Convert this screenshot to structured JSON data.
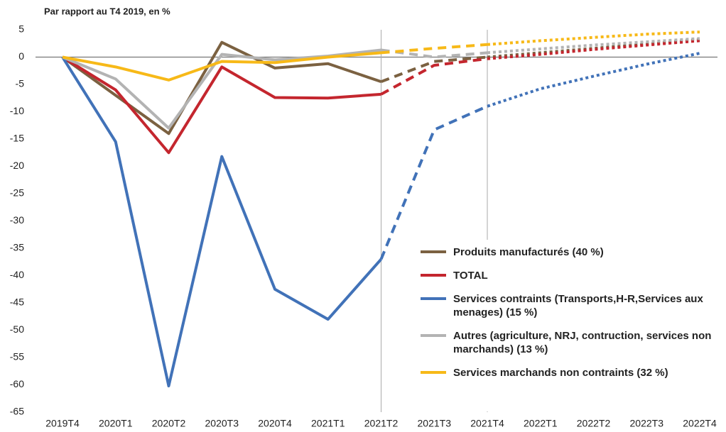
{
  "chart_data": {
    "type": "line",
    "title": "Par rapport au T4 2019, en %",
    "categories": [
      "2019T4",
      "2020T1",
      "2020T2",
      "2020T3",
      "2020T4",
      "2021T1",
      "2021T2",
      "2021T3",
      "2021T4",
      "2022T1",
      "2022T2",
      "2022T3",
      "2022T4"
    ],
    "segment_styles": [
      "solid",
      "solid",
      "solid",
      "solid",
      "solid",
      "solid",
      "dashed",
      "dashed",
      "dotted",
      "dotted",
      "dotted",
      "dotted"
    ],
    "series": [
      {
        "name": "Produits manufacturés (40 %)",
        "color": "#7b6141",
        "values": [
          0,
          -7,
          -14,
          2.7,
          -2,
          -1.2,
          -4.5,
          -0.8,
          0,
          0.8,
          1.6,
          2.4,
          3.2
        ]
      },
      {
        "name": "TOTAL",
        "color": "#c4262e",
        "values": [
          0,
          -6,
          -17.5,
          -1.8,
          -7.4,
          -7.5,
          -6.8,
          -1.5,
          -0.3,
          0.5,
          1.4,
          2.2,
          3.0
        ]
      },
      {
        "name": "Services contraints (Transports,H-R,Services aux menages) (15 %)",
        "color": "#4172b8",
        "values": [
          0,
          -15.5,
          -60.2,
          -18.2,
          -42.5,
          -48,
          -37,
          -13.3,
          -9,
          -5.8,
          -3.5,
          -1.3,
          0.7
        ]
      },
      {
        "name": "Autres (agriculture, NRJ, contruction, services non marchands) (13 %)",
        "color": "#b3b3b3",
        "values": [
          0,
          -4,
          -13,
          0.5,
          -0.5,
          0.2,
          1.3,
          0,
          0.8,
          1.5,
          2.2,
          2.8,
          3.4
        ]
      },
      {
        "name": "Services marchands non contraints (32 %)",
        "color": "#f7b918",
        "values": [
          0,
          -1.8,
          -4.2,
          -0.8,
          -1,
          0,
          0.8,
          1.6,
          2.3,
          3,
          3.6,
          4.2,
          4.6
        ]
      }
    ],
    "ylim": [
      -65,
      5
    ],
    "yticks": [
      5,
      0,
      -5,
      -10,
      -15,
      -20,
      -25,
      -30,
      -35,
      -40,
      -45,
      -50,
      -55,
      -60,
      -65
    ],
    "vlines": [
      "2021T2",
      "2021T4"
    ]
  }
}
